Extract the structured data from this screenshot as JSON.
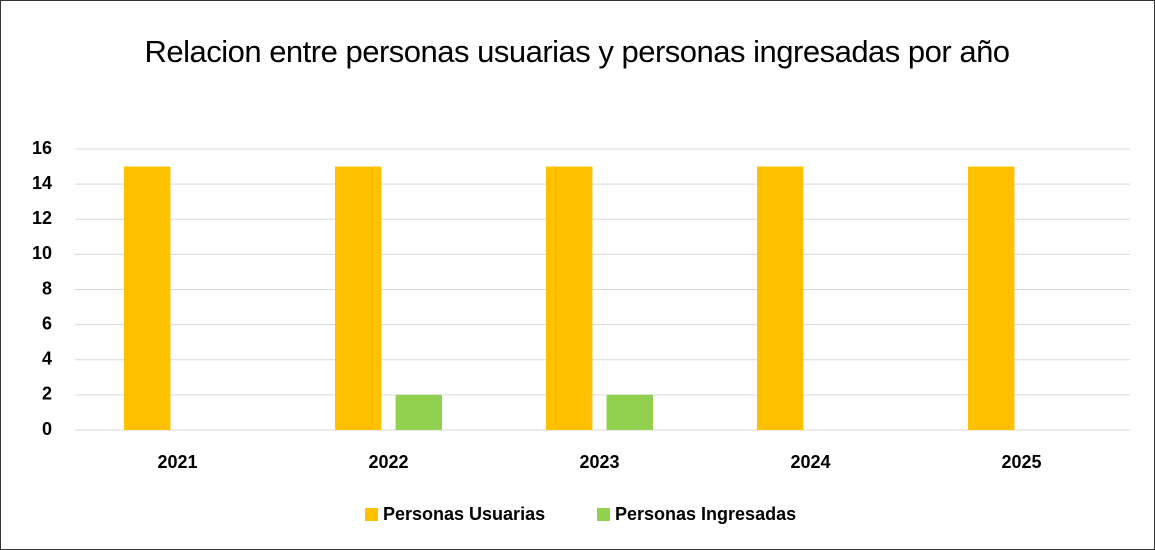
{
  "chart_data": {
    "type": "bar",
    "title": "Relacion entre personas usuarias y personas ingresadas por año",
    "categories": [
      "2021",
      "2022",
      "2023",
      "2024",
      "2025"
    ],
    "series": [
      {
        "name": "Personas Usuarias",
        "color": "#FFC000",
        "values": [
          15,
          15,
          15,
          15,
          15
        ]
      },
      {
        "name": "Personas Ingresadas",
        "color": "#92D050",
        "values": [
          0,
          2,
          2,
          0,
          0
        ]
      }
    ],
    "ylim": [
      0,
      16
    ],
    "yticks": [
      0,
      2,
      4,
      6,
      8,
      10,
      12,
      14,
      16
    ],
    "grid": true,
    "legend": "bottom"
  }
}
